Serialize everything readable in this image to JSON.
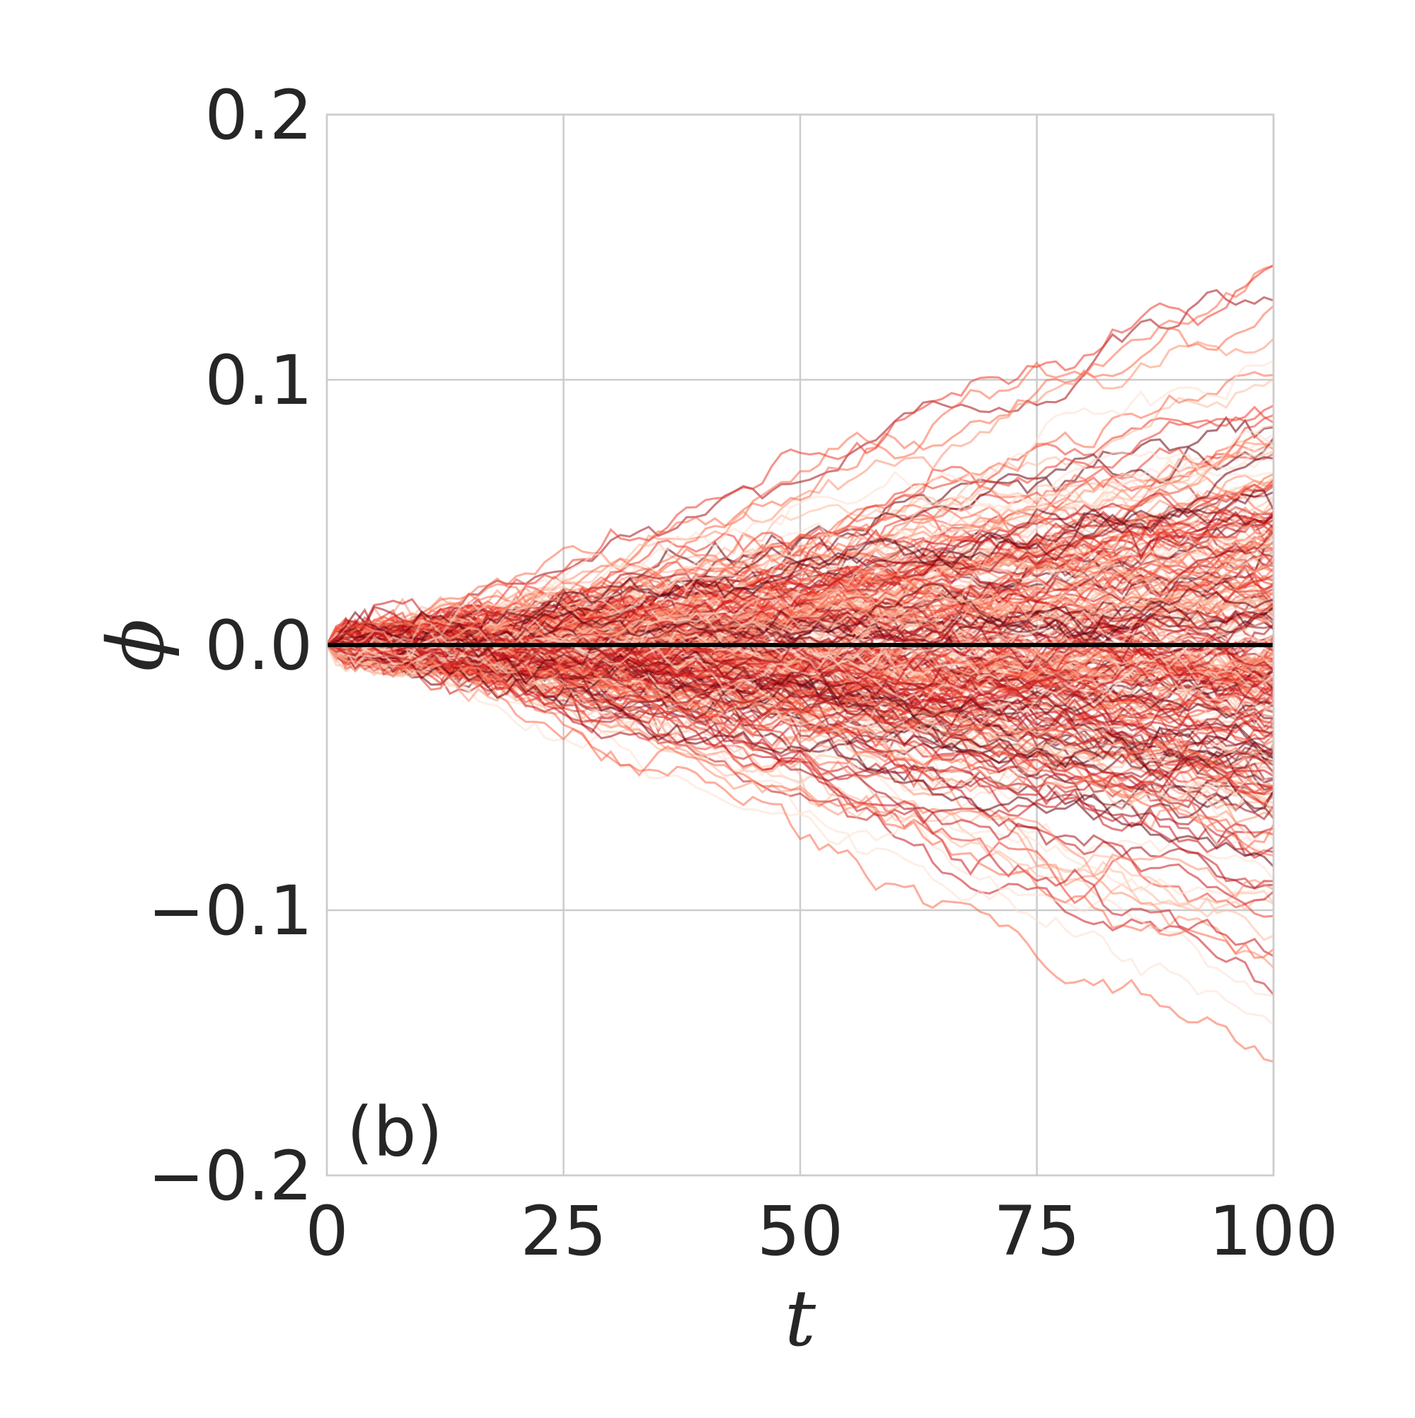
{
  "chart_data": {
    "type": "line",
    "panel_label": "(b)",
    "xlabel": "t",
    "ylabel": "ϕ",
    "xlim": [
      0,
      100
    ],
    "ylim": [
      -0.2,
      0.2
    ],
    "xticks": [
      0,
      25,
      50,
      75,
      100
    ],
    "xtick_labels": [
      "0",
      "25",
      "50",
      "75",
      "100"
    ],
    "yticks": [
      -0.2,
      -0.1,
      0.0,
      0.1,
      0.2
    ],
    "ytick_labels": [
      "−0.2",
      "−0.1",
      "0.0",
      "0.1",
      "0.2"
    ],
    "grid": true,
    "legend": "none",
    "ensemble": {
      "description_of_data": "many random-walk trajectories starting at phi=0 at t=0",
      "n_trajectories": 300,
      "t_start": 0,
      "t_end": 100,
      "start_value": 0.0,
      "final_value_range": [
        -0.178,
        0.174
      ],
      "colormap": "Reds"
    },
    "series": [
      {
        "name": "",
        "x": [
          0,
          100
        ],
        "y": [
          0.0,
          0.0
        ],
        "color": "#000000"
      }
    ],
    "colors": {
      "grid": "#cccccc",
      "text": "#262626",
      "mean_line": "#000000"
    }
  }
}
